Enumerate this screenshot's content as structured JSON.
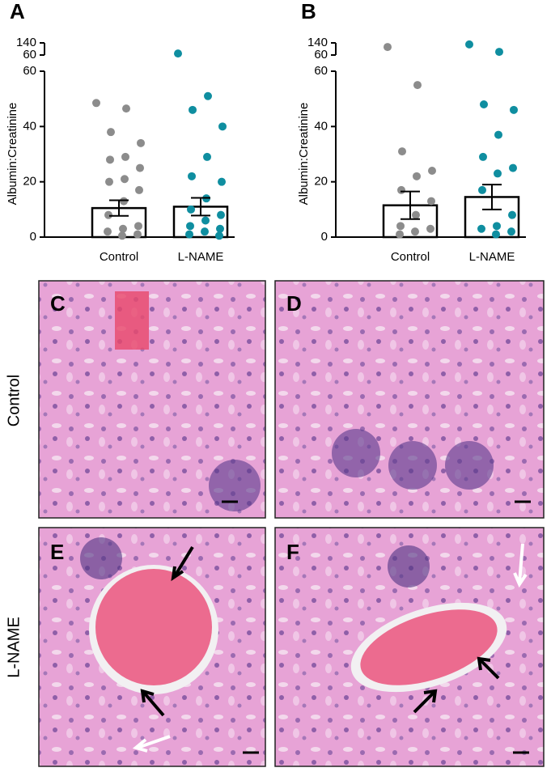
{
  "chart_data": [
    {
      "type": "bar",
      "panel": "A",
      "ylabel": "Albumin:Creatinine",
      "categories": [
        "Control",
        "L-NAME"
      ],
      "values": [
        10.5,
        11
      ],
      "errors": [
        2.8,
        3.2
      ],
      "colors": [
        "#8c8c8c",
        "#0f8ea0"
      ],
      "points": [
        [
          48.5,
          46.5,
          38,
          34,
          29,
          28,
          25,
          21,
          20,
          17,
          13,
          8,
          4,
          3,
          2,
          1,
          0.5
        ],
        [
          70,
          51,
          46,
          40,
          29,
          22,
          20,
          14,
          10,
          8,
          6,
          4,
          3,
          2,
          1,
          0.5
        ]
      ],
      "ylim": [
        0,
        60
      ],
      "yticks": [
        0,
        20,
        40,
        60
      ],
      "break_lim": [
        60,
        140
      ],
      "break_ticks": [
        60,
        140
      ]
    },
    {
      "type": "bar",
      "panel": "B",
      "ylabel": "Albumin:Creatinine",
      "categories": [
        "Control",
        "L-NAME"
      ],
      "values": [
        11.5,
        14.5
      ],
      "errors": [
        5,
        4.5
      ],
      "colors": [
        "#8c8c8c",
        "#0f8ea0"
      ],
      "points": [
        [
          113,
          55,
          31,
          24,
          22,
          17,
          13,
          8,
          4,
          3,
          2,
          1
        ],
        [
          130,
          81,
          48,
          46,
          37,
          29,
          25,
          23,
          17,
          8,
          4,
          3,
          2,
          1
        ]
      ],
      "ylim": [
        0,
        60
      ],
      "yticks": [
        0,
        20,
        40,
        60
      ],
      "break_lim": [
        60,
        140
      ],
      "break_ticks": [
        60,
        140
      ]
    }
  ],
  "panels": {
    "letters": [
      "C",
      "D",
      "E",
      "F"
    ],
    "rows": [
      "Control",
      "L-NAME"
    ]
  }
}
